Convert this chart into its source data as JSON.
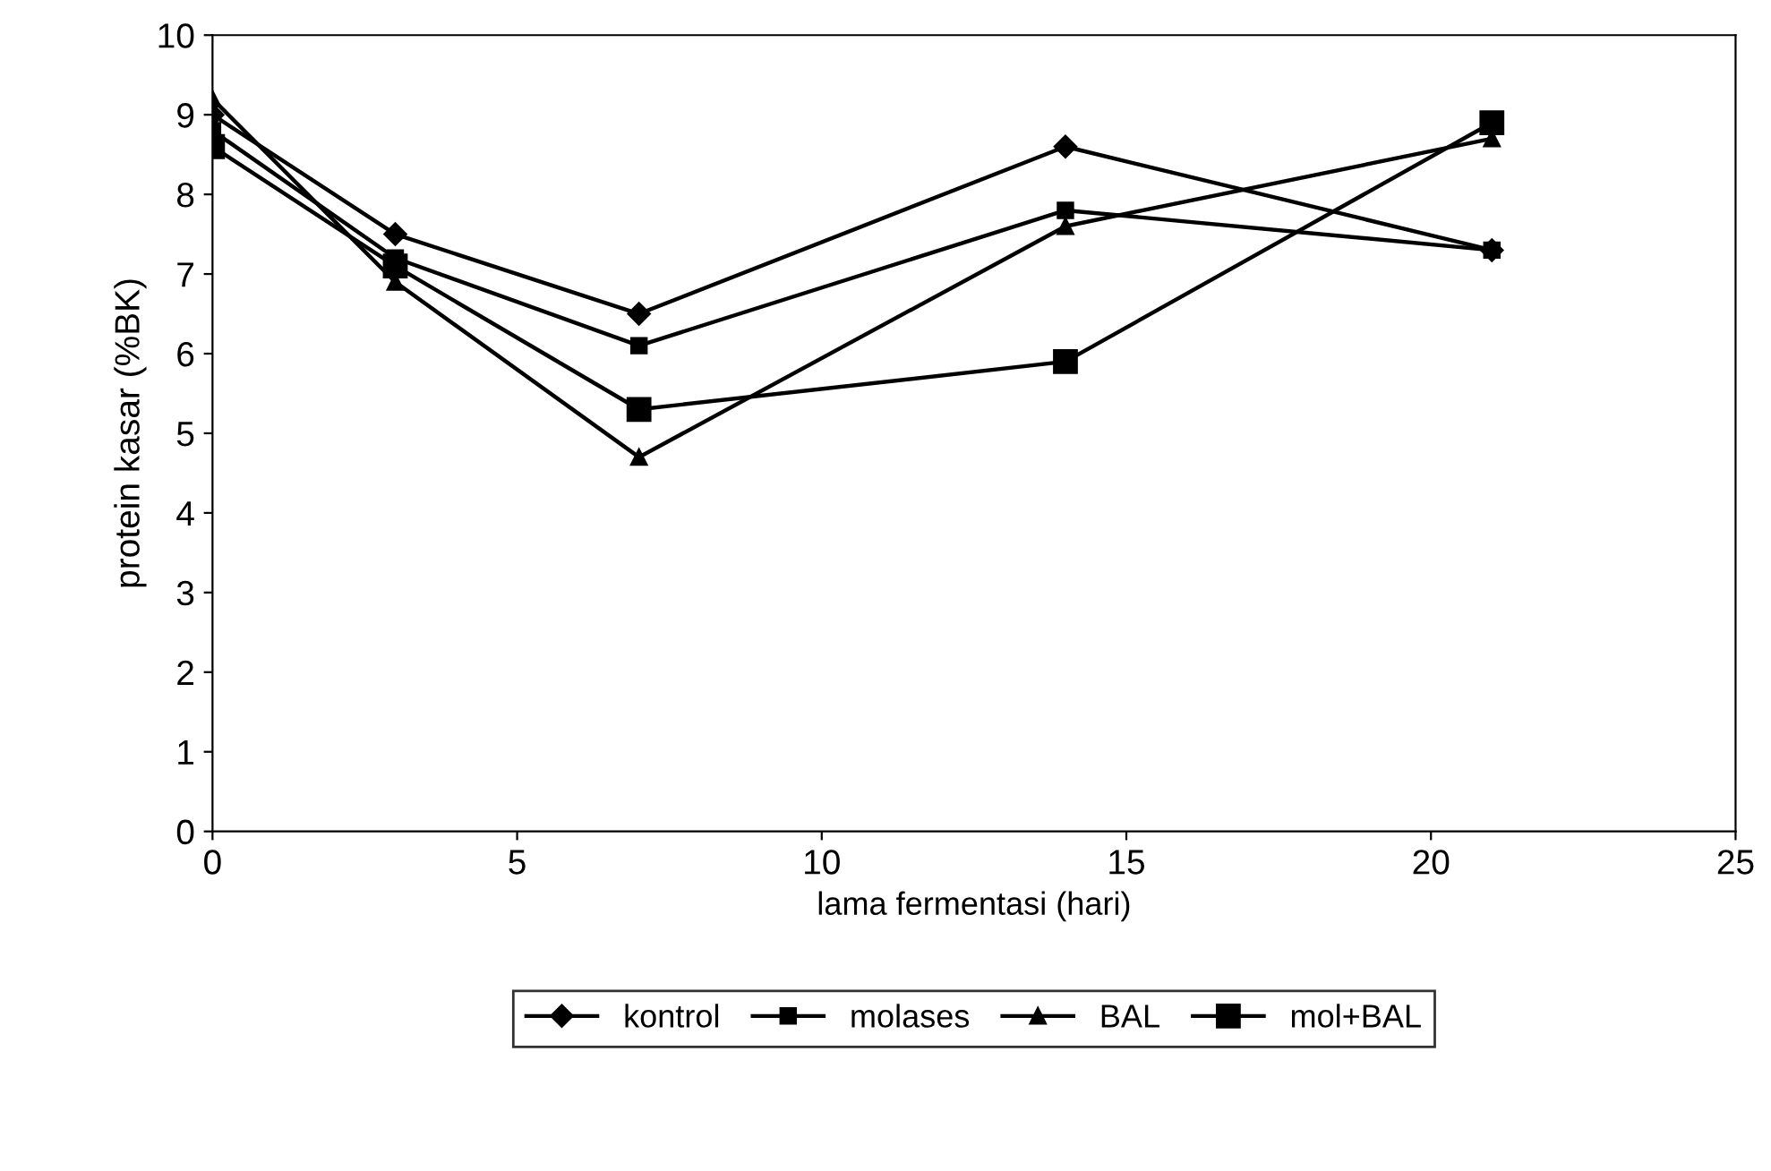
{
  "chart_data": {
    "type": "line",
    "xlabel": "lama fermentasi (hari)",
    "ylabel": "protein kasar (%BK)",
    "x": [
      0,
      3,
      7,
      14,
      21
    ],
    "series": [
      {
        "name": "kontrol",
        "color": "#000000",
        "marker": "diamond",
        "values": [
          9.0,
          7.5,
          6.5,
          8.6,
          7.3
        ]
      },
      {
        "name": "molases",
        "color": "#000000",
        "marker": "square",
        "values": [
          8.8,
          7.2,
          6.1,
          7.8,
          7.3
        ]
      },
      {
        "name": "BAL",
        "color": "#000000",
        "marker": "triangle",
        "values": [
          9.2,
          6.9,
          4.7,
          7.6,
          8.7
        ]
      },
      {
        "name": "mol+BAL",
        "color": "#000000",
        "marker": "square",
        "values": [
          8.6,
          7.1,
          5.3,
          5.9,
          8.9
        ]
      }
    ],
    "xlim": [
      0,
      25
    ],
    "ylim": [
      0,
      10
    ],
    "xticks": [
      0,
      5,
      10,
      15,
      20,
      25
    ],
    "yticks": [
      0,
      1,
      2,
      3,
      4,
      5,
      6,
      7,
      8,
      9,
      10
    ],
    "grid": false,
    "legend": "bottom",
    "line_style": "solid"
  }
}
